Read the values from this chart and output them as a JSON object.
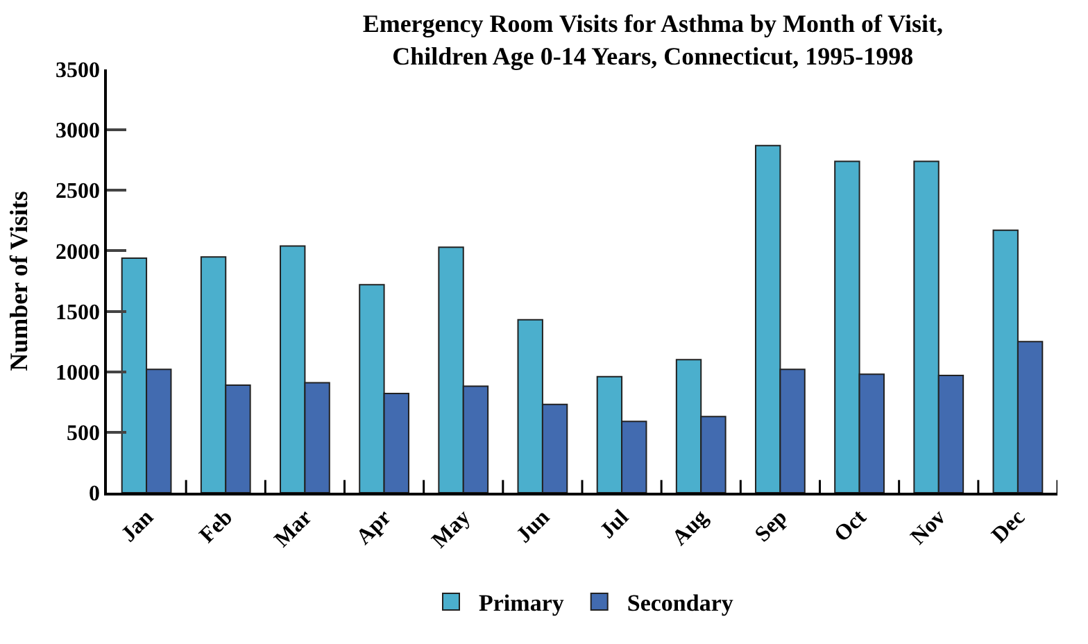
{
  "chart_data": {
    "type": "bar",
    "title": "Emergency Room Visits for Asthma by Month of Visit,\nChildren Age 0-14 Years, Connecticut, 1995-1998",
    "ylabel": "Number of Visits",
    "categories": [
      "Jan",
      "Feb",
      "Mar",
      "Apr",
      "May",
      "Jun",
      "Jul",
      "Aug",
      "Sep",
      "Oct",
      "Nov",
      "Dec"
    ],
    "series": [
      {
        "name": "Primary",
        "color": "#4bafcd",
        "values": [
          1940,
          1950,
          2040,
          1720,
          2030,
          1430,
          960,
          1100,
          2870,
          2740,
          2740,
          2170
        ]
      },
      {
        "name": "Secondary",
        "color": "#426bb0",
        "values": [
          1020,
          890,
          910,
          820,
          880,
          730,
          590,
          630,
          1020,
          980,
          970,
          1250
        ]
      }
    ],
    "ylim": [
      0,
      3500
    ],
    "yticks": [
      0,
      500,
      1000,
      1500,
      2000,
      2500,
      3000,
      3500
    ],
    "legend": "bottom"
  }
}
